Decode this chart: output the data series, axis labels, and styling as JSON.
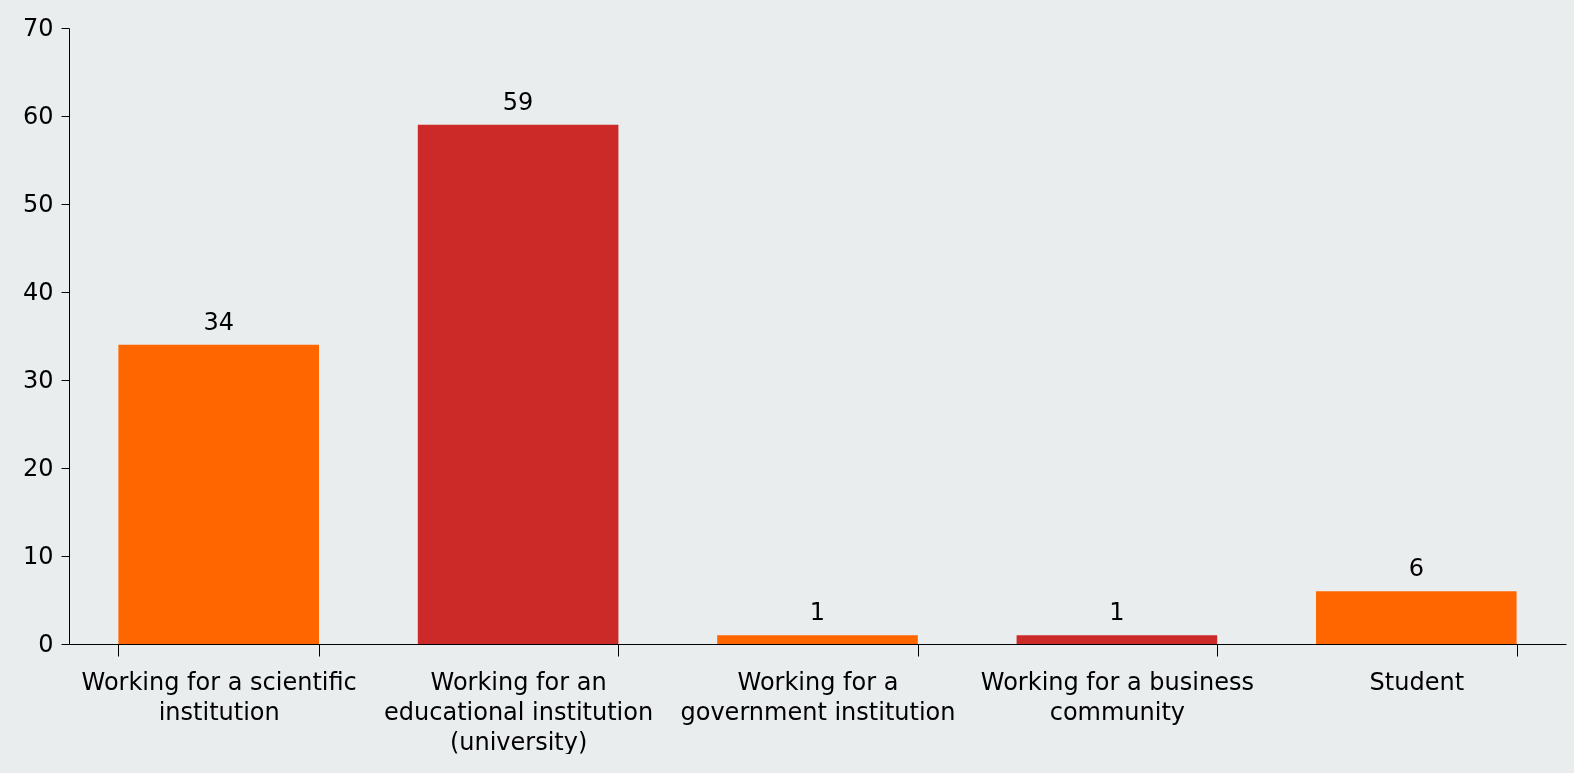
{
  "chart_data": {
    "type": "bar",
    "categories": [
      "Working for a scientific institution",
      "Working for an educational institution (university)",
      "Working for a government institution",
      "Working for a business community",
      "Student"
    ],
    "values": [
      34,
      59,
      1,
      1,
      6
    ],
    "colors": [
      "#ff6600",
      "#cc2929",
      "#ff6600",
      "#cc2929",
      "#ff6600"
    ],
    "ylim": [
      0,
      70
    ],
    "yticks": [
      0,
      10,
      20,
      30,
      40,
      50,
      60,
      70
    ],
    "data_labels": true,
    "grid": false
  }
}
